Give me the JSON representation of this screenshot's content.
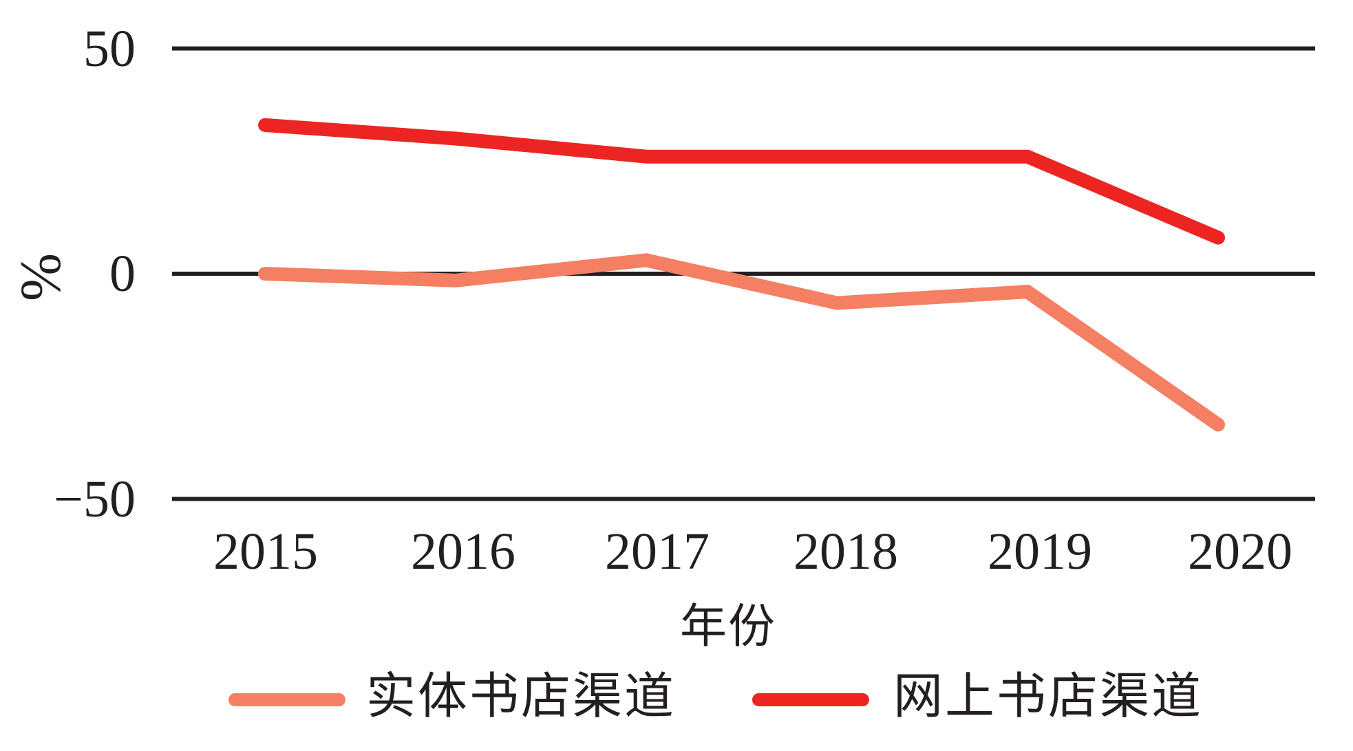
{
  "page": {
    "background_color": "#FFFFFF",
    "text_color": "#231F20"
  },
  "chart_data": {
    "type": "line",
    "title": "",
    "xlabel": "年份",
    "ylabel": "%",
    "categories": [
      "2015",
      "2016",
      "2017",
      "2018",
      "2019",
      "2020"
    ],
    "series": [
      {
        "name": "实体书店渠道",
        "color": "#F47F62",
        "values": [
          0,
          -1.5,
          3,
          -6.5,
          -4,
          -33.5
        ]
      },
      {
        "name": "网上书店渠道",
        "color": "#EC2523",
        "values": [
          33,
          30,
          26,
          26,
          26,
          8
        ]
      }
    ],
    "yticks": [
      50,
      0,
      -50
    ],
    "ytick_labels": [
      "50",
      "0",
      "−50"
    ],
    "ylim": [
      -56,
      52
    ],
    "grid": "horizontal-gridlines-at-yticks",
    "grid_color": "#231F20",
    "legend_position": "bottom"
  }
}
